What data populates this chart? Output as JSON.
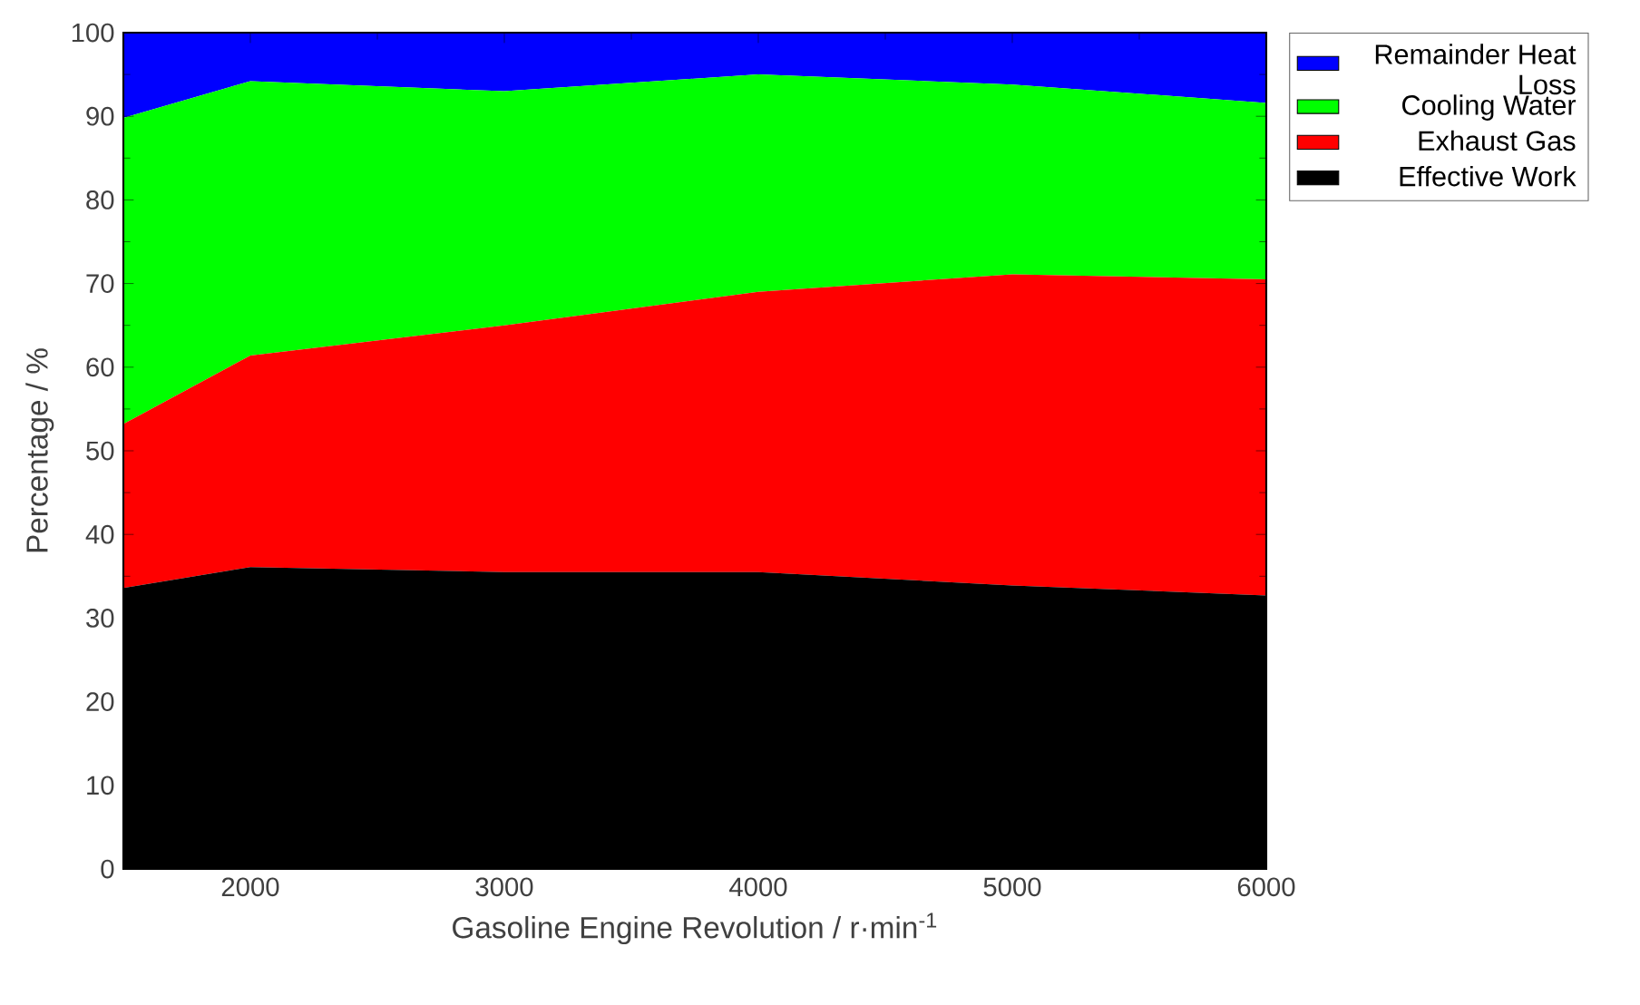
{
  "chart_data": {
    "type": "area",
    "stacked": true,
    "xlabel": "Gasoline Engine Revolution /  r·min$^{-1}$",
    "ylabel": "Percentage /  %",
    "x": [
      1500,
      2000,
      3000,
      4000,
      5000,
      6000
    ],
    "series": [
      {
        "name": "Effective Work",
        "color": "#000000",
        "values": [
          33.6,
          36.1,
          35.5,
          35.5,
          33.9,
          32.7
        ]
      },
      {
        "name": "Exhaust Gas",
        "color": "#ff0000",
        "values": [
          19.6,
          25.3,
          29.5,
          33.5,
          37.2,
          37.8
        ]
      },
      {
        "name": "Cooling Water",
        "color": "#00ff00",
        "values": [
          36.6,
          32.8,
          28.0,
          26.0,
          22.7,
          21.1
        ]
      },
      {
        "name": "Remainder Heat Loss",
        "color": "#0000ff",
        "values": [
          10.2,
          5.8,
          7.0,
          5.0,
          6.2,
          8.4
        ]
      }
    ],
    "xlim": [
      1500,
      6000
    ],
    "ylim": [
      0,
      100
    ],
    "xticks": [
      2000,
      3000,
      4000,
      5000,
      6000
    ],
    "yticks": [
      0,
      10,
      20,
      30,
      40,
      50,
      60,
      70,
      80,
      90,
      100
    ],
    "legend": "right"
  }
}
